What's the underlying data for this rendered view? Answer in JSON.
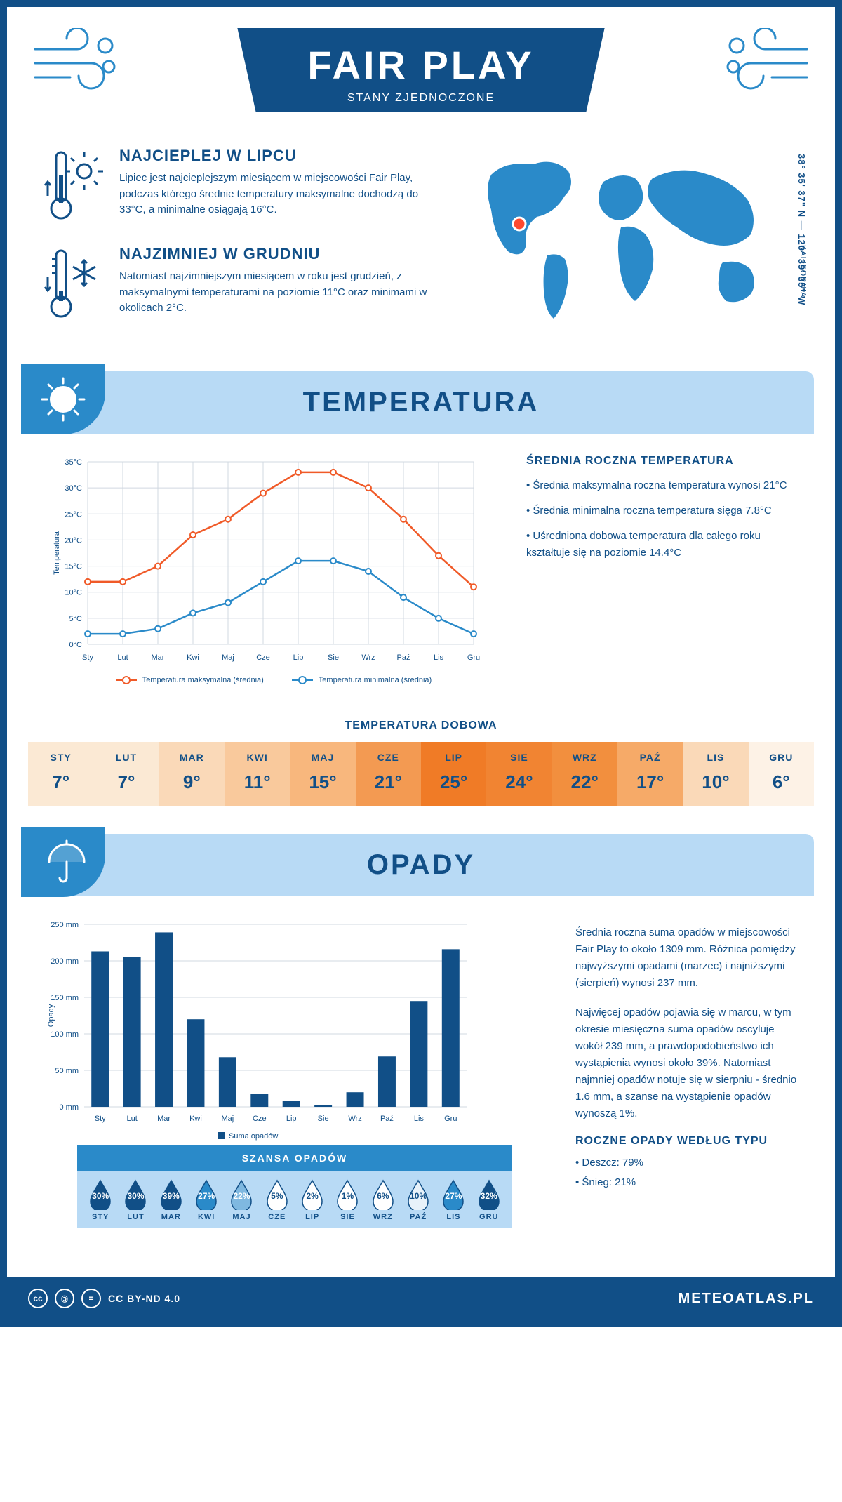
{
  "header": {
    "title": "FAIR PLAY",
    "subtitle": "STANY ZJEDNOCZONE"
  },
  "intro": {
    "hot": {
      "heading": "NAJCIEPLEJ W LIPCU",
      "body": "Lipiec jest najcieplejszym miesiącem w miejscowości Fair Play, podczas którego średnie temperatury maksymalne dochodzą do 33°C, a minimalne osiągają 16°C."
    },
    "cold": {
      "heading": "NAJZIMNIEJ W GRUDNIU",
      "body": "Natomiast najzimniejszym miesiącem w roku jest grudzień, z maksymalnymi temperaturami na poziomie 11°C oraz minimami w okolicach 2°C."
    },
    "coords": "38° 35' 37\" N — 120° 39' 35\" W",
    "region": "KALIFORNIA",
    "marker_color": "#ff4a2e",
    "map_color": "#2a8ac9"
  },
  "temp_section": {
    "title": "TEMPERATURA",
    "chart": {
      "type": "line",
      "months": [
        "Sty",
        "Lut",
        "Mar",
        "Kwi",
        "Maj",
        "Cze",
        "Lip",
        "Sie",
        "Wrz",
        "Paź",
        "Lis",
        "Gru"
      ],
      "max_series": {
        "label": "Temperatura maksymalna (średnia)",
        "color": "#f05a28",
        "values": [
          12,
          12,
          15,
          21,
          24,
          29,
          33,
          33,
          30,
          24,
          17,
          11
        ]
      },
      "min_series": {
        "label": "Temperatura minimalna (średnia)",
        "color": "#2a8ac9",
        "values": [
          2,
          2,
          3,
          6,
          8,
          12,
          16,
          16,
          14,
          9,
          5,
          2
        ]
      },
      "ylabel": "Temperatura",
      "ylim": [
        0,
        35
      ],
      "ytick_step": 5,
      "grid_color": "#d0d8e0",
      "line_width": 2.5,
      "marker": "circle"
    },
    "info": {
      "heading": "ŚREDNIA ROCZNA TEMPERATURA",
      "bullets": [
        "• Średnia maksymalna roczna temperatura wynosi 21°C",
        "• Średnia minimalna roczna temperatura sięga 7.8°C",
        "• Uśredniona dobowa temperatura dla całego roku kształtuje się na poziomie 14.4°C"
      ]
    },
    "daily": {
      "title": "TEMPERATURA DOBOWA",
      "months": [
        "STY",
        "LUT",
        "MAR",
        "KWI",
        "MAJ",
        "CZE",
        "LIP",
        "SIE",
        "WRZ",
        "PAŹ",
        "LIS",
        "GRU"
      ],
      "values": [
        "7°",
        "7°",
        "9°",
        "11°",
        "15°",
        "21°",
        "25°",
        "24°",
        "22°",
        "17°",
        "10°",
        "6°"
      ],
      "cell_colors": [
        "#fbe9d4",
        "#fbe9d4",
        "#fad9b8",
        "#f9c99c",
        "#f8b77d",
        "#f39a52",
        "#f07b26",
        "#f18432",
        "#f28f3e",
        "#f6aa68",
        "#fad9b8",
        "#fdf2e6"
      ]
    }
  },
  "precip_section": {
    "title": "OPADY",
    "chart": {
      "type": "bar",
      "months": [
        "Sty",
        "Lut",
        "Mar",
        "Kwi",
        "Maj",
        "Cze",
        "Lip",
        "Sie",
        "Wrz",
        "Paź",
        "Lis",
        "Gru"
      ],
      "values": [
        213,
        205,
        239,
        120,
        68,
        18,
        8,
        2,
        20,
        69,
        145,
        216
      ],
      "bar_color": "#114f87",
      "ylabel": "Opady",
      "ylim": [
        0,
        250
      ],
      "ytick_step": 50,
      "grid_color": "#d0d8e0",
      "legend": "Suma opadów"
    },
    "info": {
      "p1": "Średnia roczna suma opadów w miejscowości Fair Play to około 1309 mm. Różnica pomiędzy najwyższymi opadami (marzec) i najniższymi (sierpień) wynosi 237 mm.",
      "p2": "Najwięcej opadów pojawia się w marcu, w tym okresie miesięczna suma opadów oscyluje wokół 239 mm, a prawdopodobieństwo ich wystąpienia wynosi około 39%. Natomiast najmniej opadów notuje się w sierpniu - średnio 1.6 mm, a szanse na wystąpienie opadów wynoszą 1%."
    },
    "chance": {
      "title": "SZANSA OPADÓW",
      "months": [
        "STY",
        "LUT",
        "MAR",
        "KWI",
        "MAJ",
        "CZE",
        "LIP",
        "SIE",
        "WRZ",
        "PAŹ",
        "LIS",
        "GRU"
      ],
      "pct": [
        "30%",
        "30%",
        "39%",
        "27%",
        "22%",
        "5%",
        "2%",
        "1%",
        "6%",
        "10%",
        "27%",
        "32%"
      ],
      "fill_colors": [
        "#114f87",
        "#114f87",
        "#114f87",
        "#2a8ac9",
        "#7fb8e0",
        "#ffffff",
        "#ffffff",
        "#ffffff",
        "#ffffff",
        "#e8f2fa",
        "#2a8ac9",
        "#114f87"
      ],
      "text_colors": [
        "#ffffff",
        "#ffffff",
        "#ffffff",
        "#ffffff",
        "#ffffff",
        "#114f87",
        "#114f87",
        "#114f87",
        "#114f87",
        "#114f87",
        "#ffffff",
        "#ffffff"
      ]
    },
    "type": {
      "heading": "ROCZNE OPADY WEDŁUG TYPU",
      "lines": [
        "• Deszcz: 79%",
        "• Śnieg: 21%"
      ]
    }
  },
  "footer": {
    "license": "CC BY-ND 4.0",
    "site": "METEOATLAS.PL"
  },
  "colors": {
    "primary": "#114f87",
    "light_blue": "#b8daf5",
    "mid_blue": "#2a8ac9"
  }
}
